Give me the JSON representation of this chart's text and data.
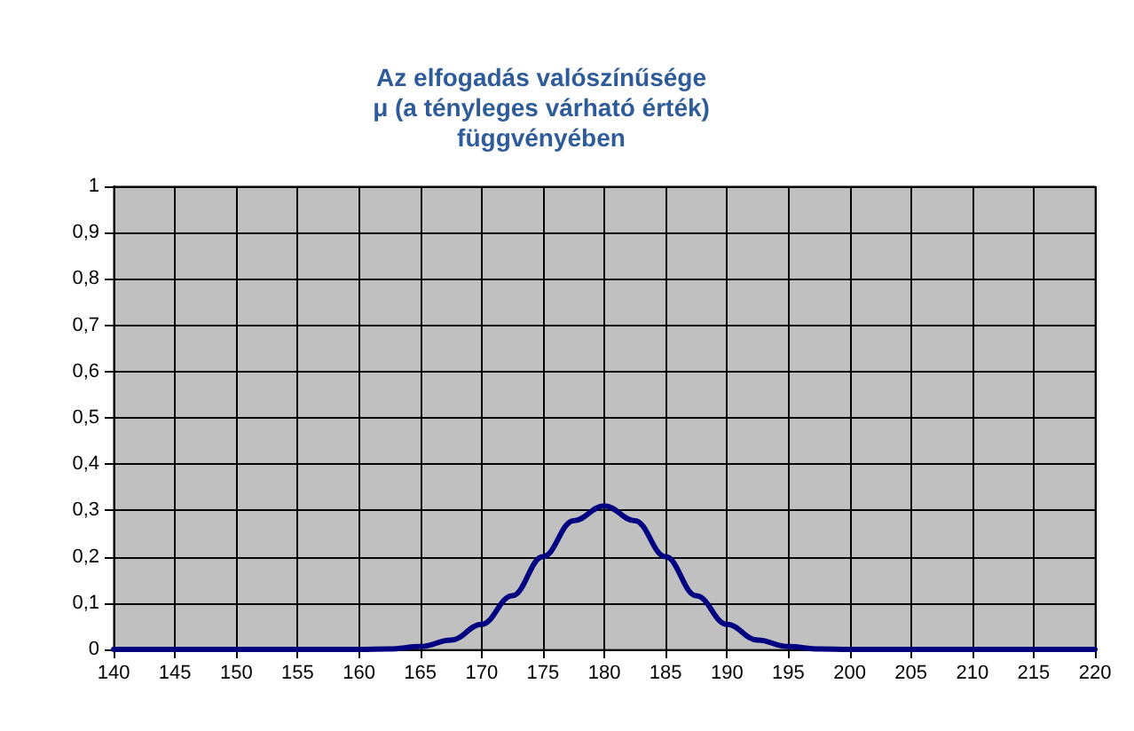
{
  "chart_data": {
    "type": "line",
    "title": "Az elfogadás valószínűsége\nμ (a tényleges várható érték)\nfüggvényében",
    "x": [
      140,
      150,
      160,
      162.5,
      165,
      167.5,
      170,
      172.5,
      175,
      177.5,
      180,
      182.5,
      185,
      187.5,
      190,
      192.5,
      195,
      197.5,
      200,
      210,
      220
    ],
    "series": [
      {
        "color": "#000080",
        "values": [
          0,
          0,
          0,
          0.001,
          0.006,
          0.02,
          0.054,
          0.116,
          0.2,
          0.278,
          0.31,
          0.278,
          0.2,
          0.116,
          0.054,
          0.02,
          0.006,
          0.001,
          0,
          0,
          0
        ]
      }
    ],
    "xlim": [
      140,
      220
    ],
    "xticks": [
      140,
      145,
      150,
      155,
      160,
      165,
      170,
      175,
      180,
      185,
      190,
      195,
      200,
      205,
      210,
      215,
      220
    ],
    "ylim": [
      0,
      1
    ],
    "yticks": [
      {
        "value": 0,
        "label": "0"
      },
      {
        "value": 0.1,
        "label": "0,1"
      },
      {
        "value": 0.2,
        "label": "0,2"
      },
      {
        "value": 0.3,
        "label": "0,3"
      },
      {
        "value": 0.4,
        "label": "0,4"
      },
      {
        "value": 0.5,
        "label": "0,5"
      },
      {
        "value": 0.6,
        "label": "0,6"
      },
      {
        "value": 0.7,
        "label": "0,7"
      },
      {
        "value": 0.8,
        "label": "0,8"
      },
      {
        "value": 0.9,
        "label": "0,9"
      },
      {
        "value": 1,
        "label": "1"
      }
    ],
    "grid": true,
    "marker": "none",
    "line_style": "solid"
  }
}
